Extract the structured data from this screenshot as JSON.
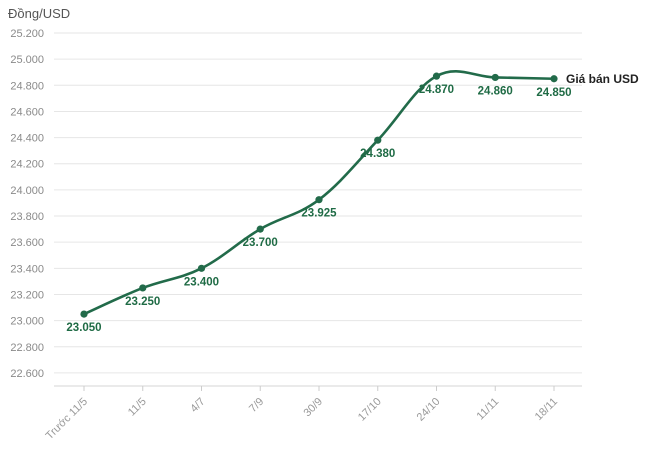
{
  "chart_data": {
    "type": "line",
    "ylabel": "Đồng/USD",
    "categories": [
      "Trước 11/5",
      "11/5",
      "4/7",
      "7/9",
      "30/9",
      "17/10",
      "24/10",
      "11/11",
      "18/11"
    ],
    "series": [
      {
        "name": "Giá bán USD",
        "values": [
          23050,
          23250,
          23400,
          23700,
          23925,
          24380,
          24870,
          24860,
          24850
        ],
        "labels": [
          "23.050",
          "23.250",
          "23.400",
          "23.700",
          "23.925",
          "24.380",
          "24.870",
          "24.860",
          "24.850"
        ],
        "color": "#226b4a"
      }
    ],
    "ylim": [
      22500,
      25200
    ],
    "yticks": [
      {
        "value": 22600,
        "label": "22.600"
      },
      {
        "value": 22800,
        "label": "22.800"
      },
      {
        "value": 23000,
        "label": "23.000"
      },
      {
        "value": 23200,
        "label": "23.200"
      },
      {
        "value": 23400,
        "label": "23.400"
      },
      {
        "value": 23600,
        "label": "23.600"
      },
      {
        "value": 23800,
        "label": "23.800"
      },
      {
        "value": 24000,
        "label": "24.000"
      },
      {
        "value": 24200,
        "label": "24.200"
      },
      {
        "value": 24400,
        "label": "24.400"
      },
      {
        "value": 24600,
        "label": "24.600"
      },
      {
        "value": 24800,
        "label": "24.800"
      },
      {
        "value": 25000,
        "label": "25.000"
      },
      {
        "value": 25200,
        "label": "25.200"
      }
    ],
    "grid": true,
    "legend": "end-of-line label"
  }
}
